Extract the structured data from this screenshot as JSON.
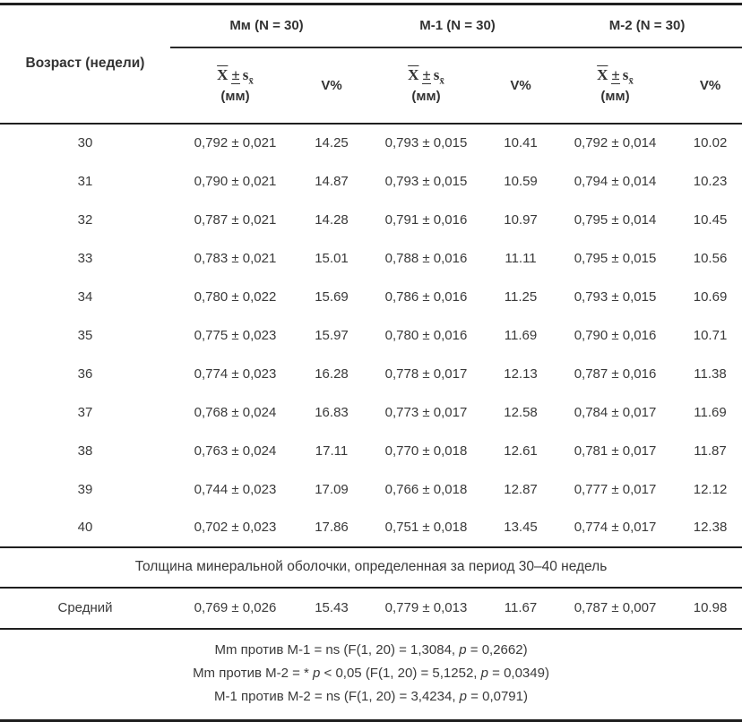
{
  "table": {
    "age_header": "Возраст (недели)",
    "groups": [
      {
        "name": "Мм (N = 30)"
      },
      {
        "name": "М-1 (N = 30)"
      },
      {
        "name": "М-2 (N = 30)"
      }
    ],
    "value_header": {
      "mean_symbol": "X",
      "plus_minus": "±",
      "sd_symbol": "s",
      "sd_subscript": "x̄",
      "unit": "(мм)"
    },
    "v_label": "V%",
    "rows": [
      {
        "age": "30",
        "mm": "0,792 ± 0,021",
        "mm_v": "14.25",
        "m1": "0,793 ± 0,015",
        "m1_v": "10.41",
        "m2": "0,792 ± 0,014",
        "m2_v": "10.02"
      },
      {
        "age": "31",
        "mm": "0,790 ± 0,021",
        "mm_v": "14.87",
        "m1": "0,793 ± 0,015",
        "m1_v": "10.59",
        "m2": "0,794 ± 0,014",
        "m2_v": "10.23"
      },
      {
        "age": "32",
        "mm": "0,787 ± 0,021",
        "mm_v": "14.28",
        "m1": "0,791 ± 0,016",
        "m1_v": "10.97",
        "m2": "0,795 ± 0,014",
        "m2_v": "10.45"
      },
      {
        "age": "33",
        "mm": "0,783 ± 0,021",
        "mm_v": "15.01",
        "m1": "0,788 ± 0,016",
        "m1_v": "11.11",
        "m2": "0,795 ± 0,015",
        "m2_v": "10.56"
      },
      {
        "age": "34",
        "mm": "0,780 ± 0,022",
        "mm_v": "15.69",
        "m1": "0,786 ± 0,016",
        "m1_v": "11.25",
        "m2": "0,793 ± 0,015",
        "m2_v": "10.69"
      },
      {
        "age": "35",
        "mm": "0,775 ± 0,023",
        "mm_v": "15.97",
        "m1": "0,780 ± 0,016",
        "m1_v": "11.69",
        "m2": "0,790 ± 0,016",
        "m2_v": "10.71"
      },
      {
        "age": "36",
        "mm": "0,774 ± 0,023",
        "mm_v": "16.28",
        "m1": "0,778 ± 0,017",
        "m1_v": "12.13",
        "m2": "0,787 ± 0,016",
        "m2_v": "11.38"
      },
      {
        "age": "37",
        "mm": "0,768 ± 0,024",
        "mm_v": "16.83",
        "m1": "0,773 ± 0,017",
        "m1_v": "12.58",
        "m2": "0,784 ± 0,017",
        "m2_v": "11.69"
      },
      {
        "age": "38",
        "mm": "0,763 ± 0,024",
        "mm_v": "17.11",
        "m1": "0,770 ± 0,018",
        "m1_v": "12.61",
        "m2": "0,781 ± 0,017",
        "m2_v": "11.87"
      },
      {
        "age": "39",
        "mm": "0,744 ± 0,023",
        "mm_v": "17.09",
        "m1": "0,766 ± 0,018",
        "m1_v": "12.87",
        "m2": "0,777 ± 0,017",
        "m2_v": "12.12"
      },
      {
        "age": "40",
        "mm": "0,702 ± 0,023",
        "mm_v": "17.86",
        "m1": "0,751 ± 0,018",
        "m1_v": "13.45",
        "m2": "0,774 ± 0,017",
        "m2_v": "12.38"
      }
    ],
    "section_row": "Толщина минеральной оболочки, определенная за период 30–40 недель",
    "mean_row": {
      "label": "Средний",
      "mm": "0,769 ± 0,026",
      "mm_v": "15.43",
      "m1": "0,779 ± 0,013",
      "m1_v": "11.67",
      "m2": "0,787 ± 0,007",
      "m2_v": "10.98"
    },
    "footer_lines": [
      [
        {
          "t": "Mm против М-1 = ns (F(1, 20) = 1,3084, "
        },
        {
          "t": "p",
          "i": true
        },
        {
          "t": " = 0,2662)"
        }
      ],
      [
        {
          "t": "Mm против М-2 = * "
        },
        {
          "t": "p",
          "i": true
        },
        {
          "t": " < 0,05 (F(1, 20) = 5,1252, "
        },
        {
          "t": "p",
          "i": true
        },
        {
          "t": " = 0,0349)"
        }
      ],
      [
        {
          "t": "М-1 против М-2 = ns (F(1, 20) = 3,4234, "
        },
        {
          "t": "p",
          "i": true
        },
        {
          "t": " = 0,0791)"
        }
      ]
    ]
  },
  "colors": {
    "text": "#3a3a3a",
    "border": "#1f1f1f",
    "background": "#ffffff"
  }
}
